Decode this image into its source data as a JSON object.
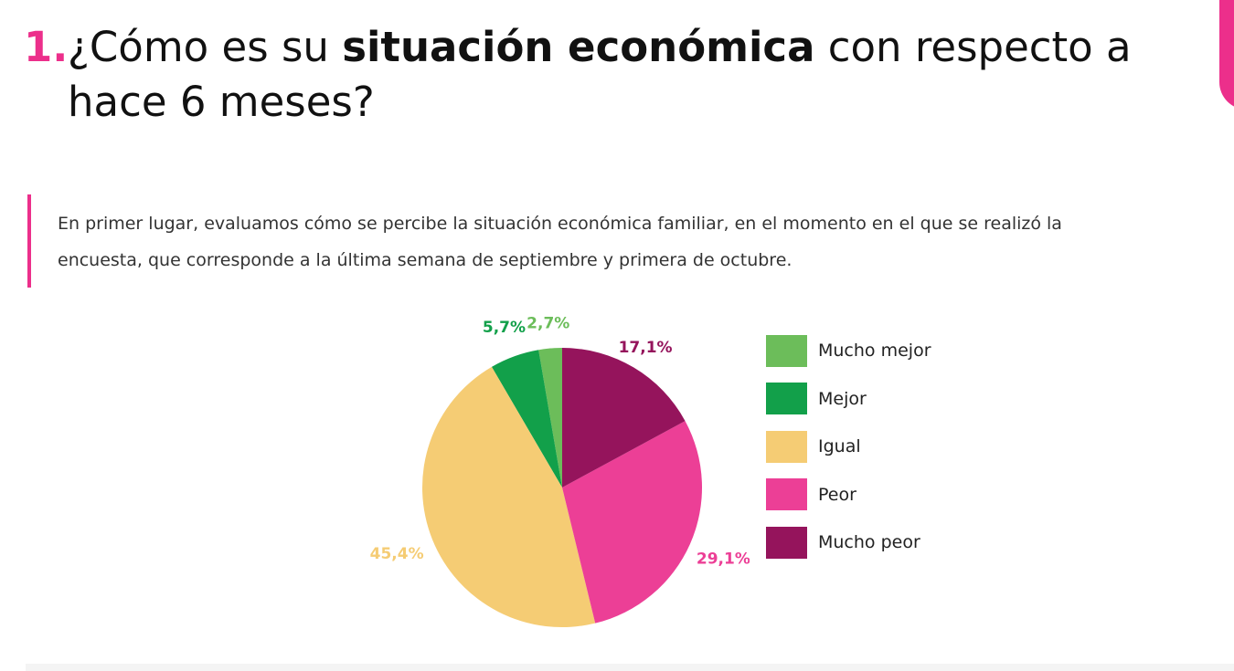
{
  "header": {
    "number": "1.",
    "title_pre": "¿Cómo es su ",
    "title_bold": "situación económica",
    "title_post": " con respecto a",
    "title_line2": "hace 6 meses?"
  },
  "intro": {
    "line1": "En primer lugar, evaluamos cómo se percibe la situación económica familiar, en el momento en el que se realizó la",
    "line2": "encuesta, que corresponde a la última semana de septiembre y primera de octubre."
  },
  "chart_data": {
    "type": "pie",
    "categories": [
      "Mucho mejor",
      "Mejor",
      "Igual",
      "Peor",
      "Mucho peor"
    ],
    "values": [
      2.7,
      5.7,
      45.4,
      29.1,
      17.1
    ],
    "labels": [
      "2,7%",
      "5,7%",
      "45,4%",
      "29,1%",
      "17,1%"
    ],
    "colors": [
      "#6cbd5a",
      "#12a04a",
      "#f5cc74",
      "#ec3f96",
      "#95145c"
    ],
    "legend_position": "right"
  }
}
